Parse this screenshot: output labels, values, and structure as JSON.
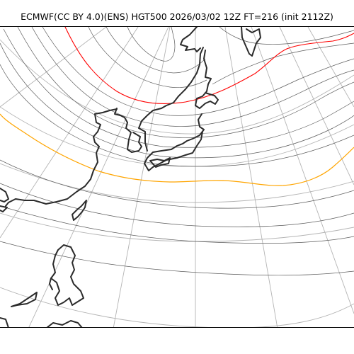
{
  "title": "ECMWF(CC BY 4.0)(ENS) HGT500 2026/03/02 12Z FT=216 (init 2112Z)",
  "colors": {
    "graticule": "#b4b4b4",
    "contour": "#5c5c5c",
    "highlight_contour_north": "#ff0000",
    "highlight_contour_south": "#ffa500",
    "coastline": "#2b2b2b",
    "background": "#ffffff"
  }
}
